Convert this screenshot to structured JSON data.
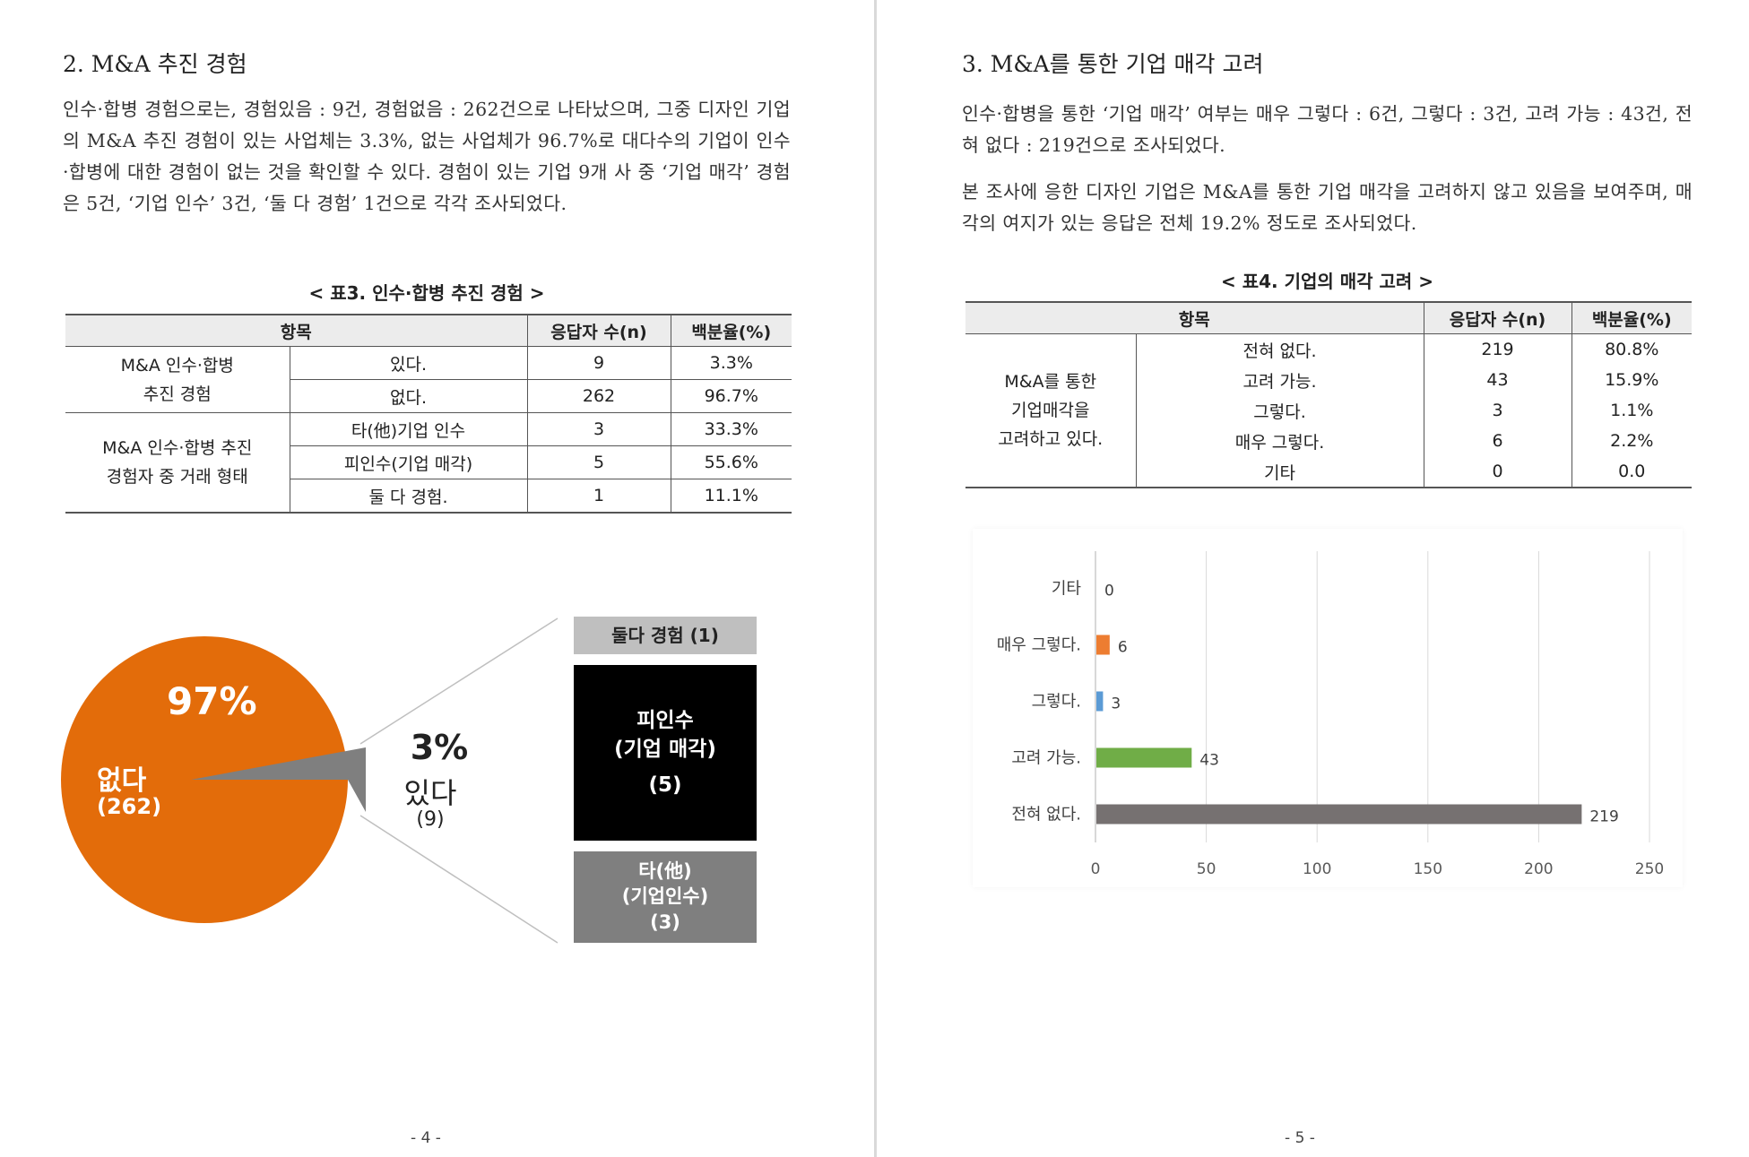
{
  "left": {
    "section_title": "2. M&A 추진 경험",
    "paragraph": "인수·합병 경험으로는, 경험있음 : 9건, 경험없음 : 262건으로 나타났으며, 그중 디자인 기업의 M&A 추진 경험이 있는 사업체는 3.3%, 없는 사업체가 96.7%로 대다수의 기업이 인수·합병에 대한 경험이 없는 것을 확인할 수 있다. 경험이 있는 기업 9개 사 중 ‘기업 매각’ 경험은 5건, ‘기업 인수’ 3건, ‘둘 다 경험’ 1건으로 각각 조사되었다.",
    "table_title": "< 표3. 인수·합병 추진 경험 >",
    "table": {
      "headers": [
        "항목",
        "응답자 수(n)",
        "백분율(%)"
      ],
      "group1_label": [
        "M&A 인수·합병",
        "추진 경험"
      ],
      "group1_rows": [
        {
          "item": "있다.",
          "n": "9",
          "pct": "3.3%"
        },
        {
          "item": "없다.",
          "n": "262",
          "pct": "96.7%"
        }
      ],
      "group2_label": [
        "M&A 인수·합병 추진",
        "경험자 중 거래 형태"
      ],
      "group2_rows": [
        {
          "item": "타(他)기업 인수",
          "n": "3",
          "pct": "33.3%"
        },
        {
          "item": "피인수(기업 매각)",
          "n": "5",
          "pct": "55.6%"
        },
        {
          "item": "둘 다 경험.",
          "n": "1",
          "pct": "11.1%"
        }
      ]
    },
    "pie": {
      "big_pct": "97%",
      "big_label": "없다",
      "big_count": "(262)",
      "small_pct": "3%",
      "small_label": "있다",
      "small_count": "(9)",
      "orange": "#e36c0a",
      "gray": "#7f7f7f",
      "values": {
        "없다": 262,
        "있다": 9
      }
    },
    "boxes": [
      {
        "lines": [
          "둘다 경험 (1)"
        ],
        "value": 1,
        "bg": "#bfbfbf",
        "fg": "#222222"
      },
      {
        "lines": [
          "피인수",
          "(기업 매각)",
          "(5)"
        ],
        "value": 5,
        "bg": "#000000",
        "fg": "#ffffff"
      },
      {
        "lines": [
          "타(他)",
          "(기업인수)",
          "(3)"
        ],
        "value": 3,
        "bg": "#7f7f7f",
        "fg": "#ffffff"
      }
    ],
    "page_number": "- 4 -"
  },
  "right": {
    "section_title": "3.  M&A를 통한 기업 매각 고려",
    "paragraph1": "인수·합병을 통한 ‘기업 매각’ 여부는 매우 그렇다 : 6건, 그렇다 : 3건, 고려 가능 : 43건, 전혀 없다 : 219건으로 조사되었다.",
    "paragraph2": "본 조사에 응한 디자인 기업은 M&A를 통한 기업 매각을 고려하지 않고 있음을 보여주며, 매각의 여지가 있는 응답은 전체 19.2% 정도로 조사되었다.",
    "table_title": "< 표4. 기업의 매각 고려 >",
    "table": {
      "headers": [
        "항목",
        "응답자 수(n)",
        "백분율(%)"
      ],
      "group_label": [
        "M&A를 통한",
        "기업매각을",
        "고려하고 있다."
      ],
      "rows": [
        {
          "item": "전혀 없다.",
          "n": "219",
          "pct": "80.8%"
        },
        {
          "item": "고려 가능.",
          "n": "43",
          "pct": "15.9%"
        },
        {
          "item": "그렇다.",
          "n": "3",
          "pct": "1.1%"
        },
        {
          "item": "매우 그렇다.",
          "n": "6",
          "pct": "2.2%"
        },
        {
          "item": "기타",
          "n": "0",
          "pct": "0.0"
        }
      ]
    },
    "page_number": "- 5 -"
  },
  "chart_data": {
    "type": "bar",
    "orientation": "horizontal",
    "categories": [
      "기타",
      "매우 그렇다.",
      "그렇다.",
      "고려 가능.",
      "전혀 없다."
    ],
    "values": [
      0,
      6,
      3,
      43,
      219
    ],
    "colors": [
      "#a5a5a5",
      "#ed7d31",
      "#5b9bd5",
      "#70ad47",
      "#767171"
    ],
    "xlim": [
      0,
      250
    ],
    "xticks": [
      "0",
      "50",
      "100",
      "150",
      "200",
      "250"
    ],
    "grid": true,
    "title": "",
    "xlabel": "",
    "ylabel": ""
  }
}
